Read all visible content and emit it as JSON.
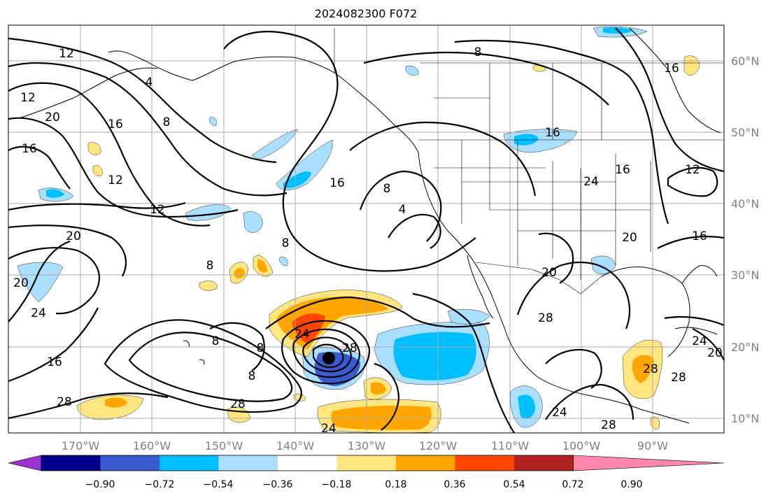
{
  "title": "2024082300 F072",
  "lat_labels": [
    "60°N",
    "50°N",
    "40°N",
    "30°N",
    "20°N",
    "10°N"
  ],
  "lon_labels": [
    "170°W",
    "160°W",
    "150°W",
    "140°W",
    "130°W",
    "120°W",
    "110°W",
    "100°W",
    "90°W"
  ],
  "colorbar": {
    "colors": [
      "#9b30d0",
      "#00008b",
      "#3a5bd0",
      "#00bfff",
      "#aadfff",
      "#ffffff",
      "#ffe680",
      "#ffa500",
      "#ff4500",
      "#b22222",
      "#ff88aa"
    ],
    "tick_labels": [
      "−0.90",
      "−0.72",
      "−0.54",
      "−0.36",
      "−0.18",
      "0.18",
      "0.36",
      "0.54",
      "0.72",
      "0.90"
    ]
  },
  "contour_labels": [
    "12",
    "12",
    "20",
    "16",
    "16",
    "12",
    "8",
    "12",
    "20",
    "20",
    "24",
    "16",
    "28",
    "8",
    "8",
    "28",
    "24",
    "24",
    "28",
    "16",
    "8",
    "4",
    "4",
    "8",
    "16",
    "16",
    "24",
    "20",
    "20",
    "16",
    "28",
    "24",
    "28",
    "24",
    "20",
    "28",
    "28",
    "12",
    "16",
    "8",
    "8",
    "8"
  ],
  "storm_marker": "tropical cyclone center"
}
